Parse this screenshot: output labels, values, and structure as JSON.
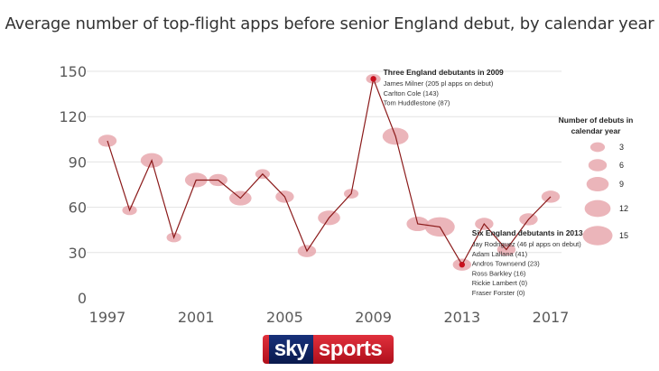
{
  "chart_data": {
    "type": "line",
    "title": "Average number of top-flight apps before senior England debut, by calendar year",
    "x": [
      1997,
      1998,
      1999,
      2000,
      2001,
      2002,
      2003,
      2004,
      2005,
      2006,
      2007,
      2008,
      2009,
      2010,
      2011,
      2012,
      2013,
      2014,
      2015,
      2016,
      2017
    ],
    "series": [
      {
        "values": [
          104,
          58,
          91,
          40,
          78,
          78,
          66,
          82,
          67,
          31,
          53,
          69,
          145,
          107,
          49,
          47,
          22,
          49,
          32,
          52,
          67
        ],
        "debuts": [
          6,
          3,
          9,
          3,
          9,
          6,
          9,
          3,
          6,
          6,
          9,
          3,
          3,
          12,
          9,
          15,
          6,
          6,
          6,
          6,
          6
        ]
      }
    ],
    "xticks": [
      "1997",
      "2001",
      "2005",
      "2009",
      "2013",
      "2017"
    ],
    "yticks": [
      "0",
      "30",
      "60",
      "90",
      "120",
      "150"
    ],
    "xlim": [
      1997,
      2017
    ],
    "ylim": [
      0,
      150
    ],
    "grid": true,
    "colors": {
      "line": "#8b1a1a",
      "bubble": "#e8a8ae",
      "highlight": "#c8101e",
      "grid": "#e3e3e3"
    },
    "annotations": [
      {
        "year": 2009,
        "title": "Three England debutants in 2009",
        "lines": [
          "James Milner (205 pl apps on debut)",
          "Carlton Cole (143)",
          "Tom Huddlestone (87)"
        ]
      },
      {
        "year": 2013,
        "title": "Six England debutants in 2013",
        "lines": [
          "Jay Rodriguez (46 pl apps on debut)",
          "Adam Lallana (41)",
          "Andros Townsend (23)",
          "Ross Barkley (16)",
          "Rickie Lambert (0)",
          "Fraser Forster (0)"
        ]
      }
    ],
    "legend": {
      "title_lines": [
        "Number of debuts in",
        "calendar year"
      ],
      "entries": [
        "3",
        "6",
        "9",
        "12",
        "15"
      ],
      "position": "right"
    }
  },
  "logo": {
    "icon": "sky-sports-logo",
    "sky": "sky",
    "sports": "sports"
  }
}
